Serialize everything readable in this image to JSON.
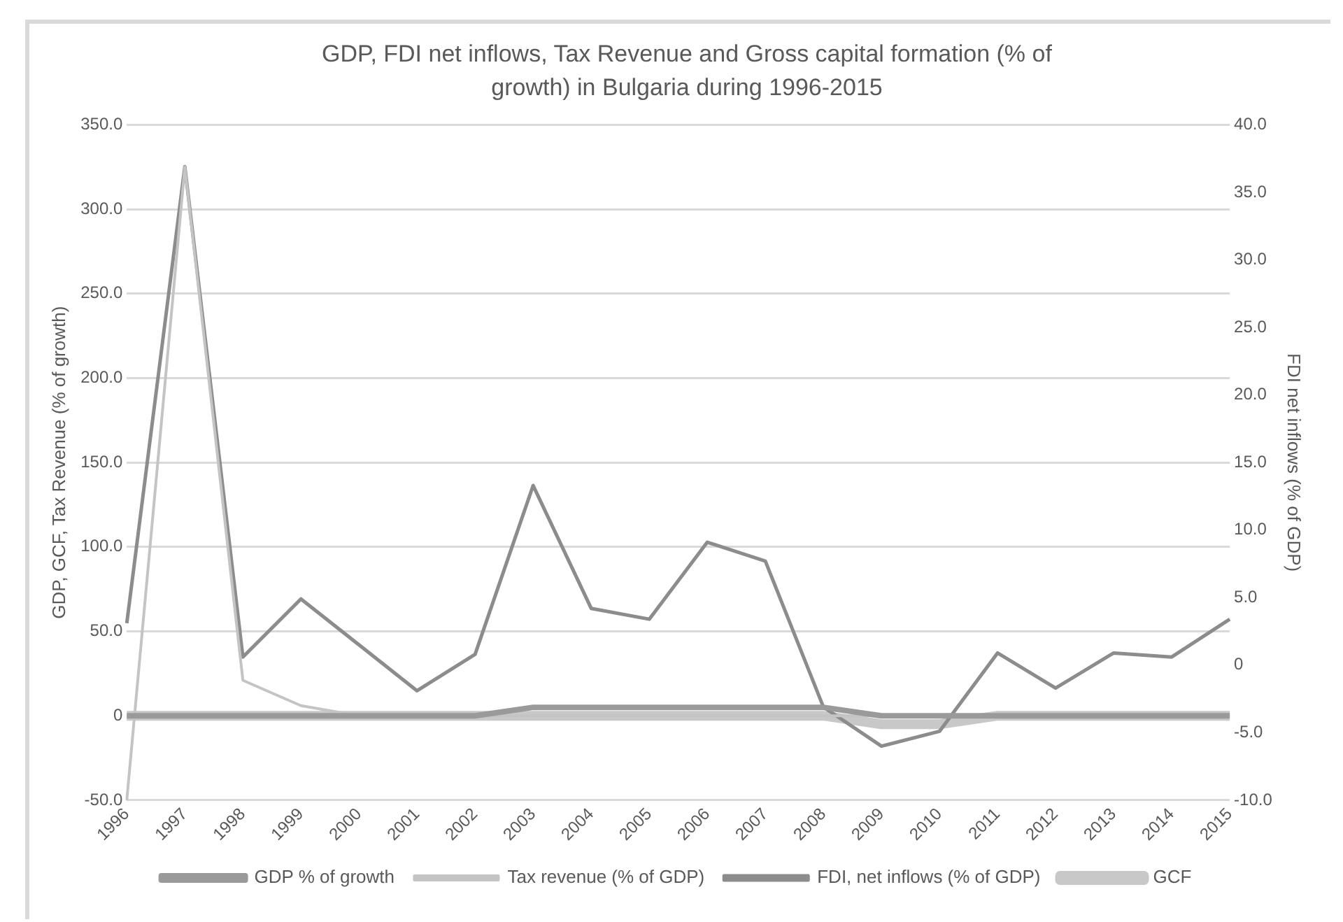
{
  "chart_data": {
    "type": "line",
    "title": "GDP, FDI net inflows, Tax Revenue and Gross capital formation (% of growth) in Bulgaria during 1996-2015",
    "ylabel": "GDP, GCF, Tax Revenue (% of growth)",
    "y2label": "FDI net inflows (% of GDP)",
    "categories": [
      "1996",
      "1997",
      "1998",
      "1999",
      "2000",
      "2001",
      "2002",
      "2003",
      "2004",
      "2005",
      "2006",
      "2007",
      "2008",
      "2009",
      "2010",
      "2011",
      "2012",
      "2013",
      "2014",
      "2015"
    ],
    "series": [
      {
        "name": "GDP % of growth",
        "color": "#9a9a9a",
        "values": [
          0,
          0,
          0,
          0,
          0,
          0,
          0,
          5,
          5,
          5,
          5,
          5,
          5,
          0,
          0,
          0,
          0,
          0,
          0,
          0
        ]
      },
      {
        "name": "GCF",
        "color": "#c8c8c8",
        "values": [
          0,
          0,
          0,
          0,
          0,
          0,
          0,
          0,
          0,
          0,
          0,
          0,
          0,
          -5,
          -5,
          0,
          0,
          0,
          0,
          0
        ]
      },
      {
        "name": "Tax revenue (% of GDP)",
        "color": "#c4c4c4",
        "values": [
          -50,
          325,
          21,
          6,
          0,
          0,
          0,
          0,
          0,
          0,
          0,
          0,
          0,
          0,
          0,
          0,
          0,
          0,
          0,
          0
        ]
      },
      {
        "name": "FDI, net inflows (% of GDP)",
        "color": "#8c8c8c",
        "axis": "y2",
        "values": [
          3.1,
          36.9,
          0.6,
          4.9,
          1.5,
          -1.9,
          0.8,
          13.3,
          4.2,
          3.4,
          9.1,
          7.7,
          -3.1,
          -6.0,
          -4.9,
          0.9,
          -1.7,
          0.9,
          0.6,
          3.4
        ]
      }
    ],
    "ylim": [
      -50,
      350
    ],
    "yticks": [
      {
        "value": -50,
        "label": "-50.0"
      },
      0,
      {
        "value": 50,
        "label": "50.0"
      },
      {
        "value": 100,
        "label": "100.0"
      },
      {
        "value": 150,
        "label": "150.0"
      },
      {
        "value": 200,
        "label": "200.0"
      },
      {
        "value": 250,
        "label": "250.0"
      },
      {
        "value": 300,
        "label": "300.0"
      },
      {
        "value": 350,
        "label": "350.0"
      }
    ],
    "y2lim": [
      -10,
      40
    ],
    "y2ticks": [
      {
        "value": -10,
        "label": "-10.0"
      },
      {
        "value": -5,
        "label": "-5.0"
      },
      0,
      {
        "value": 5,
        "label": "5.0"
      },
      {
        "value": 10,
        "label": "10.0"
      },
      {
        "value": 15,
        "label": "15.0"
      },
      {
        "value": 20,
        "label": "20.0"
      },
      {
        "value": 25,
        "label": "25.0"
      },
      {
        "value": 30,
        "label": "30.0"
      },
      {
        "value": 35,
        "label": "35.0"
      },
      {
        "value": 40,
        "label": "40.0"
      }
    ],
    "grid": "y",
    "legend": "bottom",
    "marker": "none",
    "line_style": "solid"
  }
}
